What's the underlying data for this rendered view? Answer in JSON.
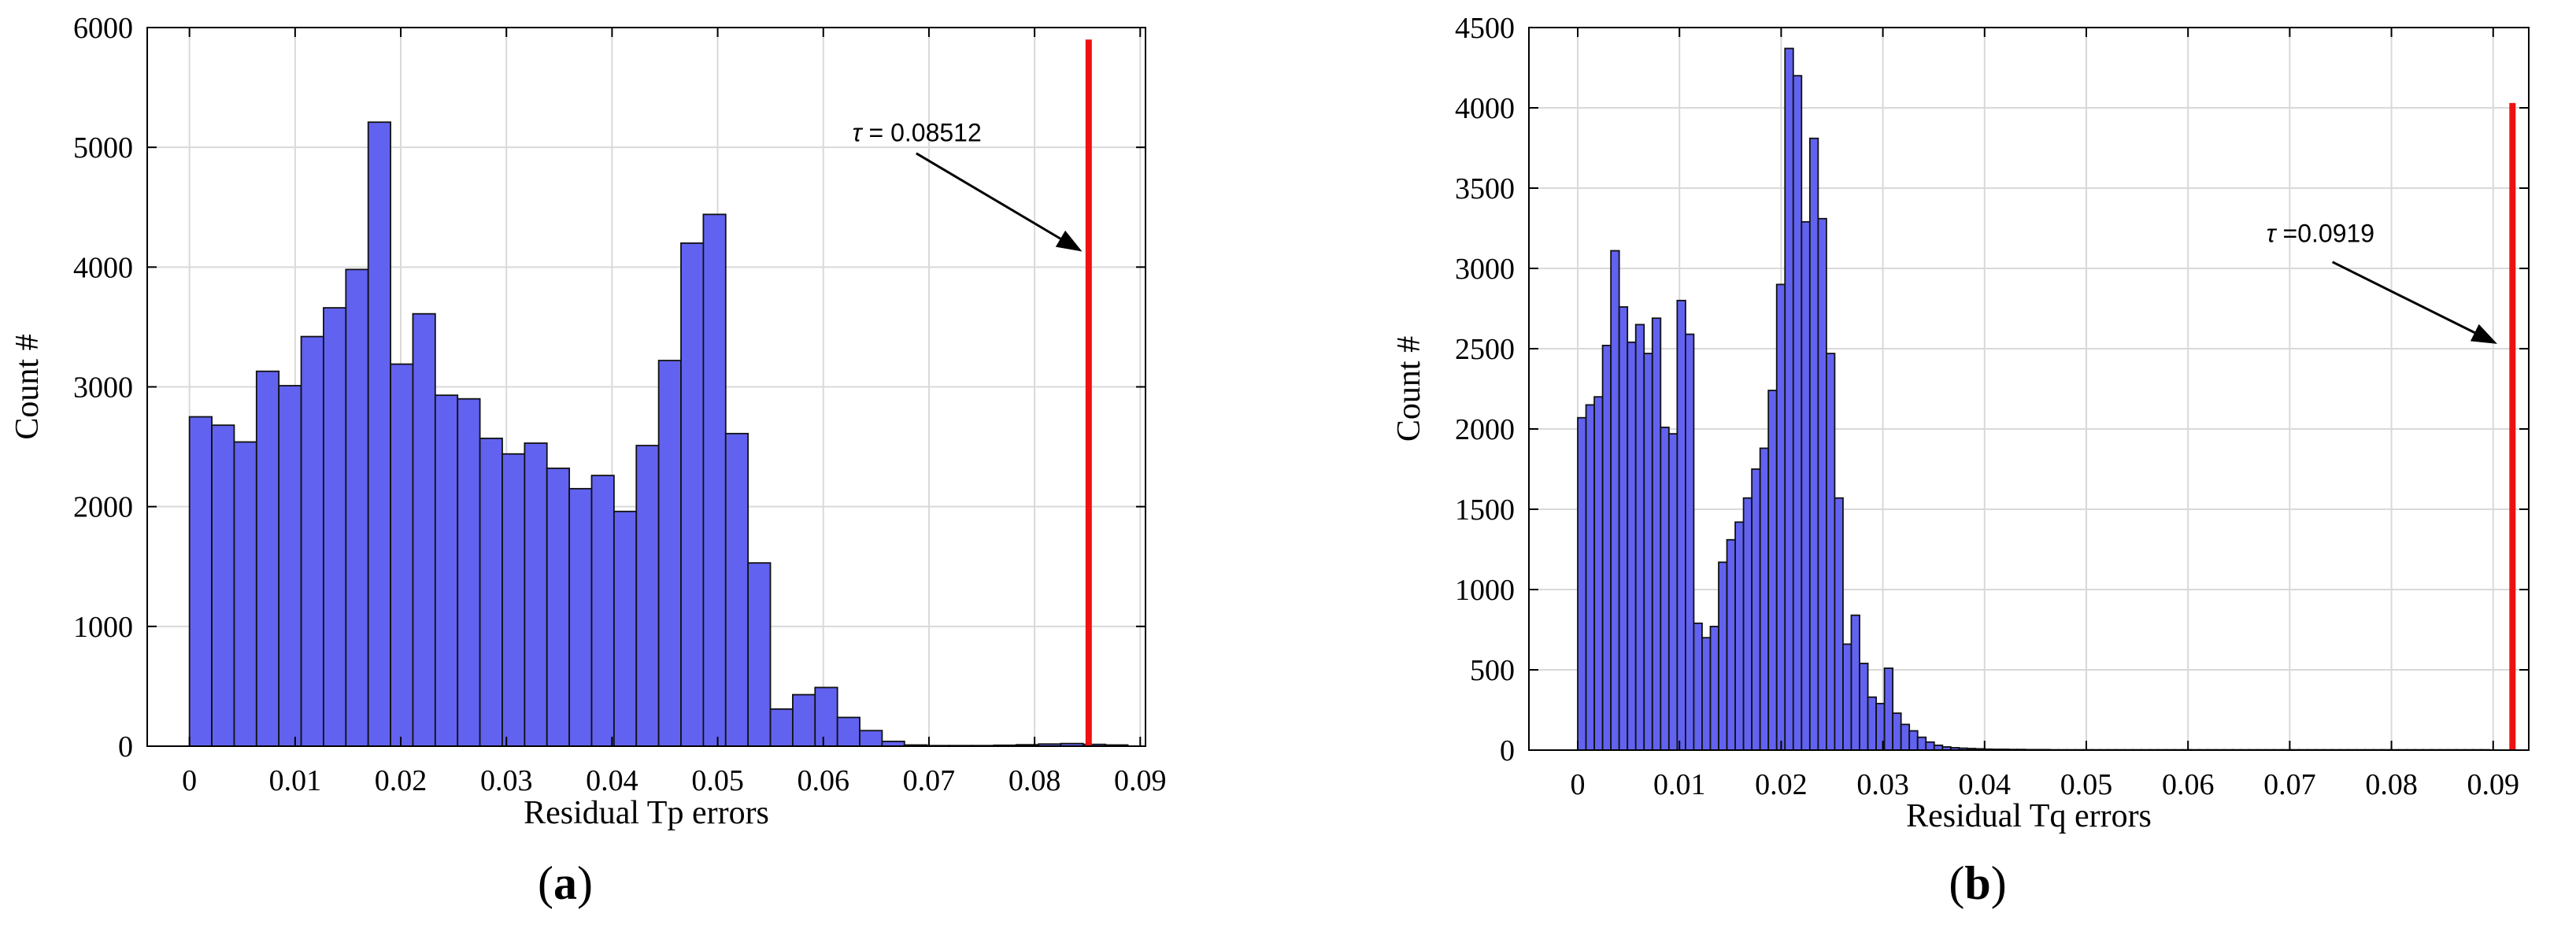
{
  "colors": {
    "bar_fill": "#6262F0",
    "bar_edge": "#111111",
    "threshold_line": "#EE1111",
    "grid": "#D9D9D9",
    "axes": "#000000"
  },
  "chart_data": [
    {
      "type": "bar",
      "caption_open": "(",
      "caption_letter": "a",
      "caption_close": ")",
      "xlabel": "Residual Tp errors",
      "ylabel": "Count #",
      "xlim": [
        -0.004,
        0.0905
      ],
      "ylim": [
        0,
        6000
      ],
      "xticks": [
        0,
        0.01,
        0.02,
        0.03,
        0.04,
        0.05,
        0.06,
        0.07,
        0.08,
        0.09
      ],
      "xtick_labels": [
        "0",
        "0.01",
        "0.02",
        "0.03",
        "0.04",
        "0.05",
        "0.06",
        "0.07",
        "0.08",
        "0.09"
      ],
      "yticks": [
        0,
        1000,
        2000,
        3000,
        4000,
        5000,
        6000
      ],
      "ytick_labels": [
        "0",
        "1000",
        "2000",
        "3000",
        "4000",
        "5000",
        "6000"
      ],
      "grid": true,
      "bin_start": 0,
      "bin_width": 0.002115,
      "values": [
        2750,
        2680,
        2540,
        3130,
        3010,
        3420,
        3660,
        3980,
        5210,
        3190,
        3610,
        2930,
        2900,
        2570,
        2440,
        2530,
        2320,
        2150,
        2260,
        1960,
        2510,
        3220,
        4200,
        4440,
        2610,
        1530,
        310,
        430,
        490,
        240,
        130,
        40,
        10,
        5,
        5,
        5,
        8,
        12,
        18,
        22,
        15,
        10
      ],
      "threshold": {
        "value": 0.08512,
        "line_top": 5900,
        "label_symbol": "τ",
        "label_text": " = 0.08512",
        "label_x": 0.06275,
        "label_y": 5050,
        "arrow_from": [
          0.0688,
          4950
        ],
        "arrow_to": [
          0.0845,
          4130
        ]
      }
    },
    {
      "type": "bar",
      "caption_open": "(",
      "caption_letter": "b",
      "caption_close": ")",
      "xlabel": "Residual Tq errors",
      "ylabel": "Count #",
      "xlim": [
        -0.0048,
        0.0935
      ],
      "ylim": [
        0,
        4500
      ],
      "xticks": [
        0,
        0.01,
        0.02,
        0.03,
        0.04,
        0.05,
        0.06,
        0.07,
        0.08,
        0.09
      ],
      "xtick_labels": [
        "0",
        "0.01",
        "0.02",
        "0.03",
        "0.04",
        "0.05",
        "0.06",
        "0.07",
        "0.08",
        "0.09"
      ],
      "yticks": [
        0,
        500,
        1000,
        1500,
        2000,
        2500,
        3000,
        3500,
        4000,
        4500
      ],
      "ytick_labels": [
        "0",
        "500",
        "1000",
        "1500",
        "2000",
        "2500",
        "3000",
        "3500",
        "4000",
        "4500"
      ],
      "grid": true,
      "bin_start": 0,
      "bin_width": 0.000815,
      "values": [
        2070,
        2150,
        2200,
        2520,
        3110,
        2760,
        2540,
        2650,
        2470,
        2690,
        2010,
        1970,
        2800,
        2590,
        790,
        700,
        770,
        1170,
        1310,
        1420,
        1570,
        1750,
        1880,
        2240,
        2900,
        4370,
        4200,
        3290,
        3810,
        3310,
        2470,
        1570,
        660,
        840,
        540,
        330,
        290,
        510,
        230,
        160,
        120,
        80,
        50,
        30,
        20,
        15,
        12,
        10,
        8,
        6,
        5,
        5,
        4,
        4,
        3,
        3,
        3,
        2,
        2,
        2,
        2,
        2,
        2,
        2,
        2,
        2,
        2,
        2,
        2,
        2,
        2,
        2,
        2,
        2,
        2,
        2,
        2,
        2,
        2,
        2,
        2,
        2,
        2,
        2,
        2,
        2,
        2,
        2,
        2,
        2,
        2,
        2,
        2,
        2,
        2,
        2,
        2,
        2,
        2,
        2,
        2,
        2,
        2,
        2,
        2,
        2,
        2,
        2,
        2,
        2
      ],
      "threshold": {
        "value": 0.0919,
        "line_top": 4030,
        "label_symbol": "τ",
        "label_text": " =0.0919",
        "label_x": 0.0677,
        "label_y": 3165,
        "arrow_from": [
          0.0742,
          3040
        ],
        "arrow_to": [
          0.0904,
          2530
        ]
      }
    }
  ]
}
